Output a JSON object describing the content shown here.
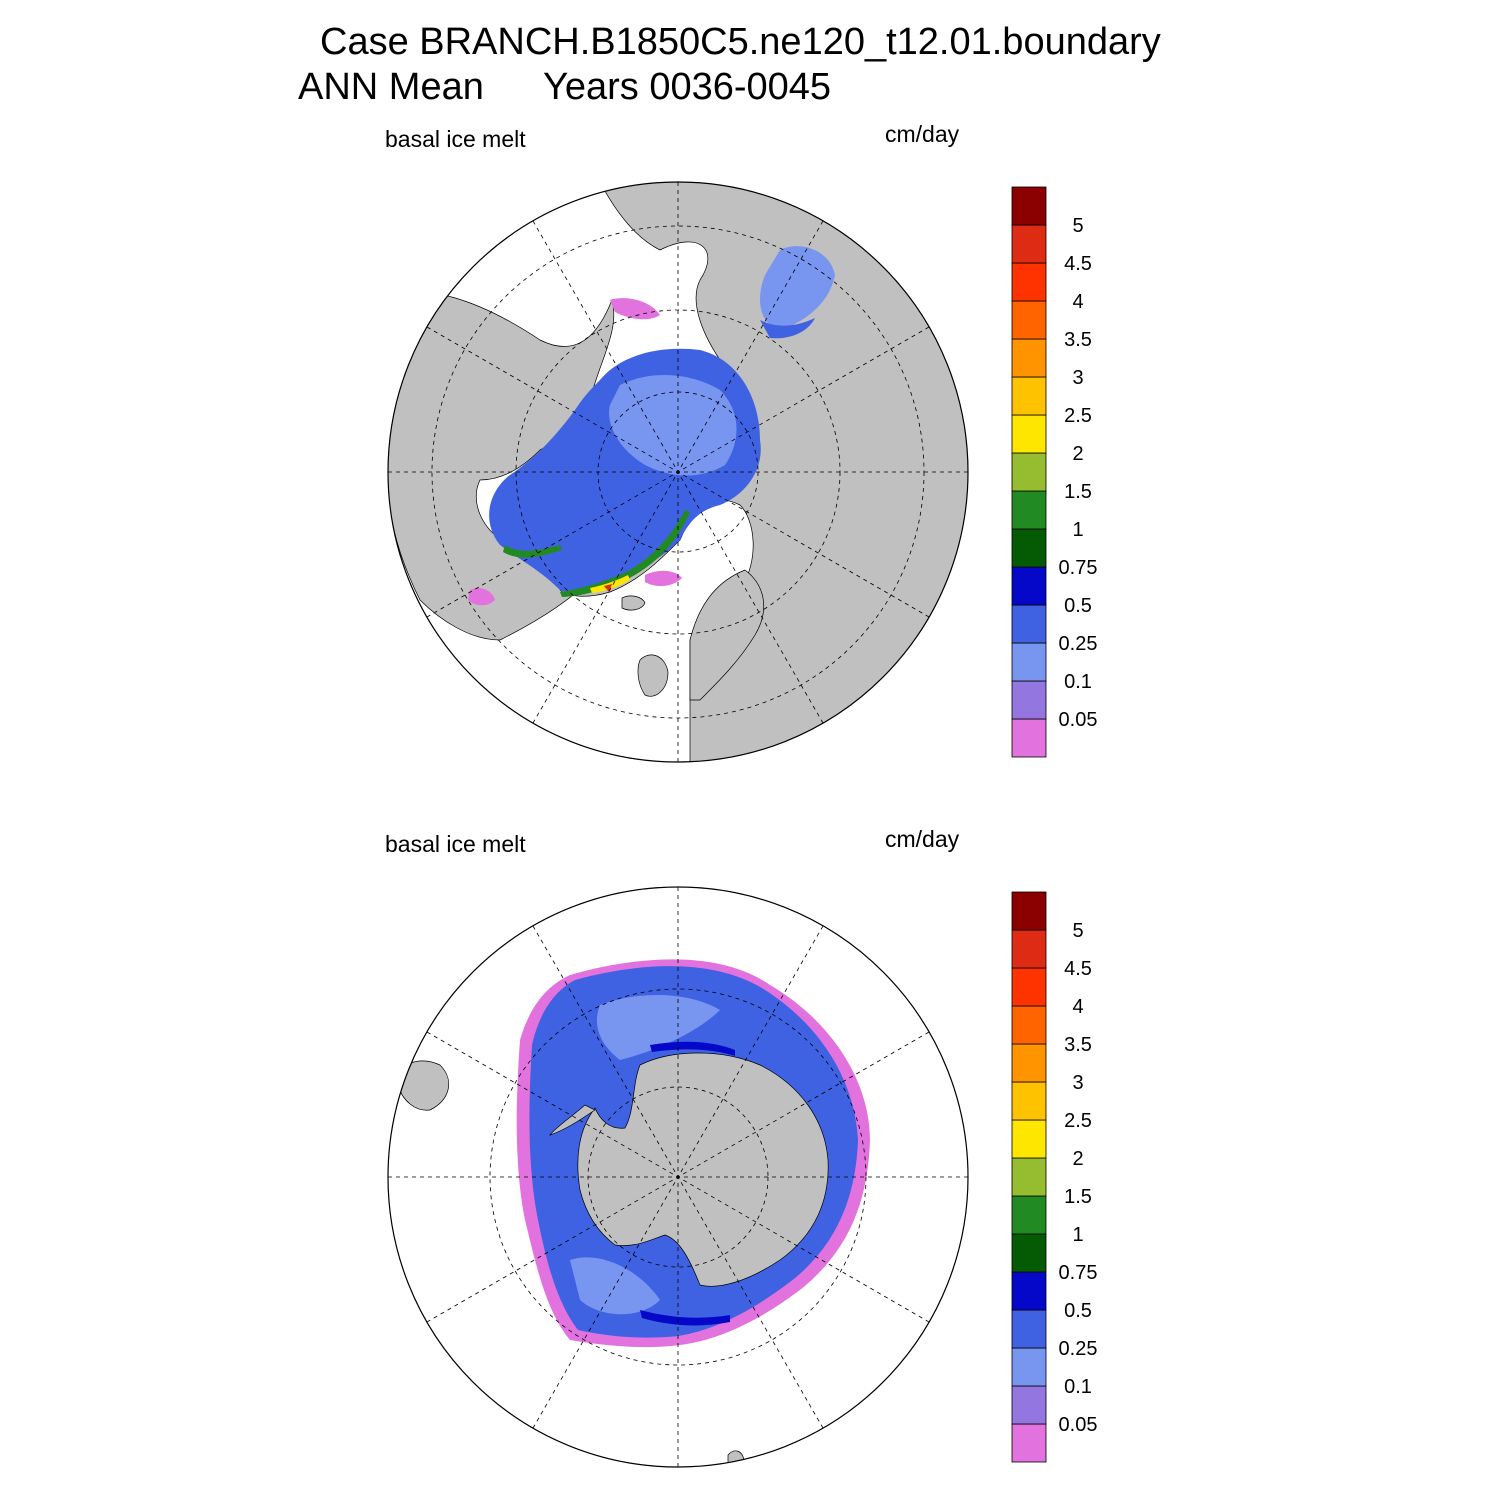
{
  "title": {
    "case": "Case BRANCH.B1850C5.ne120_t12.01.boundary",
    "period": "ANN Mean",
    "years": "Years 0036-0045"
  },
  "panels": [
    {
      "id": "north",
      "variable": "basal ice melt",
      "units": "cm/day"
    },
    {
      "id": "south",
      "variable": "basal ice melt",
      "units": "cm/day"
    }
  ],
  "colorbar": {
    "levels": [
      "0.05",
      "0.1",
      "0.25",
      "0.5",
      "0.75",
      "1",
      "1.5",
      "2",
      "2.5",
      "3",
      "3.5",
      "4",
      "4.5",
      "5"
    ],
    "colors": [
      "#e273de",
      "#9476e0",
      "#7895f0",
      "#3f62e3",
      "#0508c8",
      "#045b04",
      "#228a22",
      "#96bd2f",
      "#ffe600",
      "#ffc200",
      "#ff9300",
      "#ff6400",
      "#ff3300",
      "#de2b13",
      "#8b0000"
    ]
  },
  "map_colors": {
    "land": "#c0c0c0",
    "ocean": "#ffffff"
  }
}
